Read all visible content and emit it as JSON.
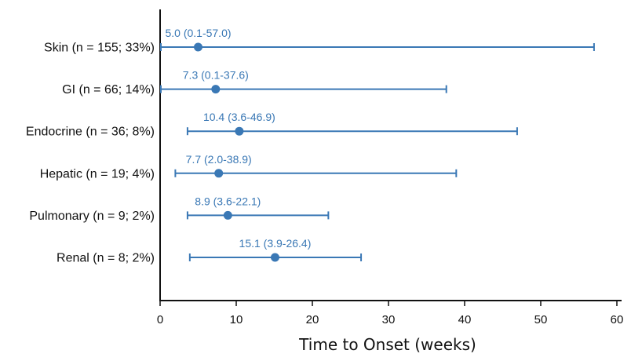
{
  "chart_data": {
    "type": "forest",
    "title": "",
    "xlabel": "Time to Onset (weeks)",
    "ylabel": "",
    "xlim": [
      0,
      60
    ],
    "xticks": [
      0,
      10,
      20,
      30,
      40,
      50,
      60
    ],
    "grid": false,
    "color": "#3a78b5",
    "categories": [
      "Skin (n = 155; 33%)",
      "GI (n = 66; 14%)",
      "Endocrine (n = 36; 8%)",
      "Hepatic (n = 19; 4%)",
      "Pulmonary (n = 9; 2%)",
      "Renal (n = 8; 2%)"
    ],
    "points": [
      {
        "median": 5.0,
        "low": 0.1,
        "high": 57.0,
        "label": "5.0 (0.1-57.0)"
      },
      {
        "median": 7.3,
        "low": 0.1,
        "high": 37.6,
        "label": "7.3 (0.1-37.6)"
      },
      {
        "median": 10.4,
        "low": 3.6,
        "high": 46.9,
        "label": "10.4 (3.6-46.9)"
      },
      {
        "median": 7.7,
        "low": 2.0,
        "high": 38.9,
        "label": "7.7 (2.0-38.9)"
      },
      {
        "median": 8.9,
        "low": 3.6,
        "high": 22.1,
        "label": "8.9 (3.6-22.1)"
      },
      {
        "median": 15.1,
        "low": 3.9,
        "high": 26.4,
        "label": "15.1 (3.9-26.4)"
      }
    ]
  }
}
